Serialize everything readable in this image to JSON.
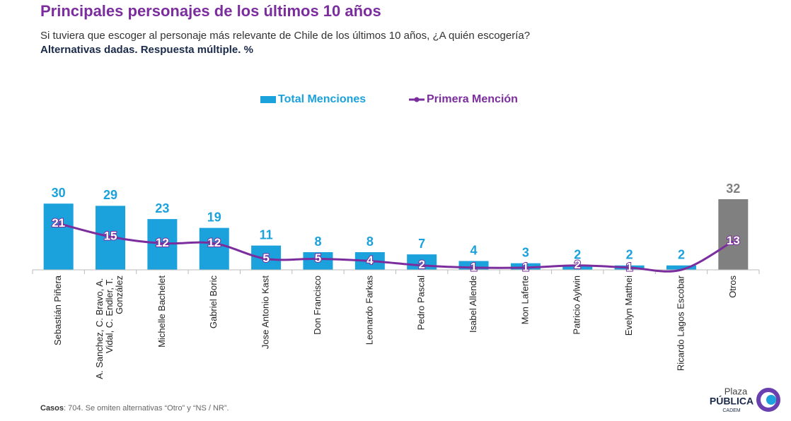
{
  "chart_data": {
    "type": "bar_line",
    "title": "Principales personajes de los últimos 10 años",
    "subtitle": "Si tuviera que escoger al personaje más relevante de Chile de los últimos 10 años, ¿A quién escogería?",
    "note": "Alternativas dadas. Respuesta múltiple. %",
    "categories": [
      "Sebastián Piñera",
      "A. Sanchez, C. Bravo, A. Vidal, C. Endler, T. González",
      "Michelle Bachelet",
      "Gabriel Boric",
      "Jose Antonio Kast",
      "Don Francisco",
      "Leonardo Farkas",
      "Pedro Pascal",
      "Isabel Allende",
      "Mon Laferte",
      "Patricio Aylwin",
      "Evelyn Matthei",
      "Ricardo Lagos Escobar",
      "Otros"
    ],
    "ylim": [
      0,
      32
    ],
    "series": [
      {
        "name": "Total Menciones",
        "type": "bar",
        "color": "#1ba1db",
        "colors": [
          "#1ba1db",
          "#1ba1db",
          "#1ba1db",
          "#1ba1db",
          "#1ba1db",
          "#1ba1db",
          "#1ba1db",
          "#1ba1db",
          "#1ba1db",
          "#1ba1db",
          "#1ba1db",
          "#1ba1db",
          "#1ba1db",
          "#808080"
        ],
        "values": [
          30,
          29,
          23,
          19,
          11,
          8,
          8,
          7,
          4,
          3,
          2,
          2,
          2,
          32
        ]
      },
      {
        "name": "Primera Mención",
        "type": "line",
        "color": "#7b2d9e",
        "values": [
          21,
          15,
          12,
          12,
          5,
          5,
          4,
          2,
          1,
          1,
          2,
          1,
          0,
          13
        ],
        "value_labels": [
          "21",
          "15",
          "12",
          "12",
          "5",
          "5",
          "4",
          "2",
          "1",
          "1",
          "2",
          "1",
          "",
          "13"
        ]
      }
    ],
    "footnote_label": "Casos",
    "footnote_text": ": 704. Se omiten alternativas “Otro” y “NS / NR”.",
    "logo": {
      "line1": "Plaza",
      "line2": "PÚBLICA",
      "line3": "CADEM"
    }
  }
}
